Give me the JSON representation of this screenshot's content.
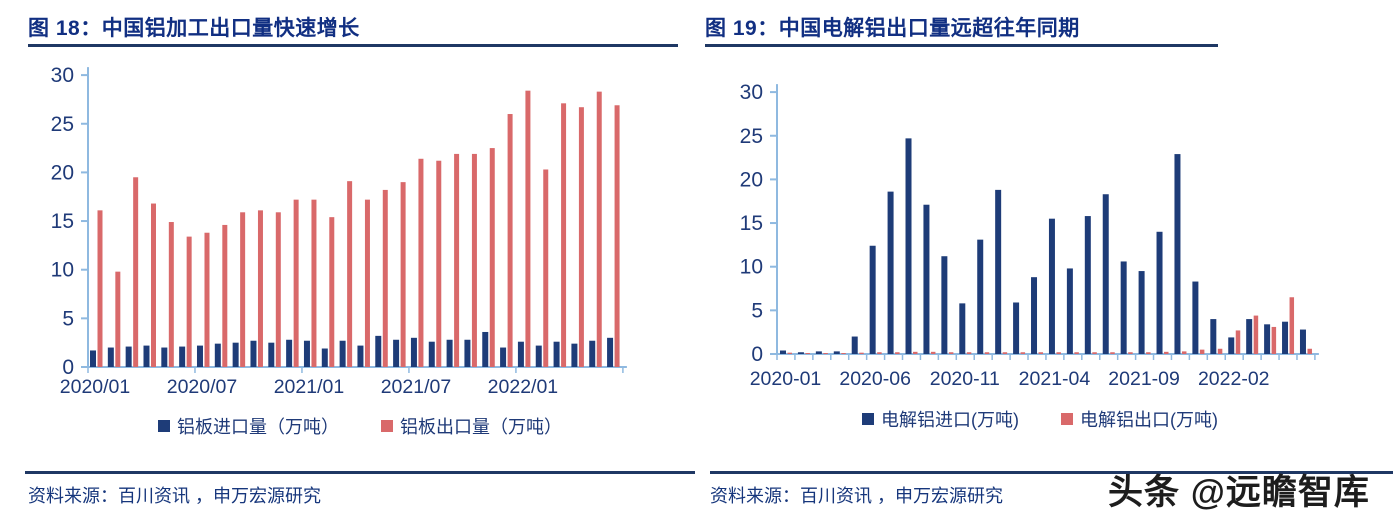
{
  "colors": {
    "title_blue": "#112f82",
    "text_navy": "#1f3a78",
    "axis_light_blue": "#8fb9e0",
    "rule_navy": "#1f3864",
    "bar_blue": "#1e3c78",
    "bar_red": "#d9696a",
    "watermark_ink": "#1d1d1d"
  },
  "panels": [
    {
      "title": "图 18：中国铝加工出口量快速增长",
      "source": "资料来源：百川资讯 ，申万宏源研究",
      "chart_data": {
        "type": "bar",
        "x": [
          "2020/01",
          "2020/02",
          "2020/03",
          "2020/04",
          "2020/05",
          "2020/06",
          "2020/07",
          "2020/08",
          "2020/09",
          "2020/10",
          "2020/11",
          "2020/12",
          "2021/01",
          "2021/02",
          "2021/03",
          "2021/04",
          "2021/05",
          "2021/06",
          "2021/07",
          "2021/08",
          "2021/09",
          "2021/10",
          "2021/11",
          "2021/12",
          "2022/01",
          "2022/02",
          "2022/03",
          "2022/04",
          "2022/05",
          "2022/06"
        ],
        "series": [
          {
            "name": "铝板进口量（万吨）",
            "color": "#1e3c78",
            "values": [
              1.7,
              2.0,
              2.1,
              2.2,
              2.0,
              2.1,
              2.2,
              2.4,
              2.5,
              2.7,
              2.5,
              2.8,
              2.7,
              1.9,
              2.7,
              2.2,
              3.2,
              2.8,
              3.0,
              2.6,
              2.8,
              2.8,
              3.6,
              2.0,
              2.6,
              2.2,
              2.6,
              2.4,
              2.7,
              3.0
            ]
          },
          {
            "name": "铝板出口量（万吨）",
            "color": "#d9696a",
            "values": [
              16.1,
              9.8,
              19.5,
              16.8,
              14.9,
              13.4,
              13.8,
              14.6,
              15.9,
              16.1,
              15.9,
              17.2,
              17.2,
              15.4,
              19.1,
              17.2,
              18.2,
              19.0,
              21.4,
              21.2,
              21.9,
              21.9,
              22.5,
              26.0,
              28.4,
              20.3,
              27.1,
              26.7,
              28.3,
              26.9
            ]
          }
        ],
        "ylim": [
          0,
          30
        ],
        "yticks": [
          0,
          5,
          10,
          15,
          20,
          25,
          30
        ],
        "xticks_shown": [
          {
            "index": 0,
            "label": "2020/01"
          },
          {
            "index": 6,
            "label": "2020/07"
          },
          {
            "index": 12,
            "label": "2021/01"
          },
          {
            "index": 18,
            "label": "2021/07"
          },
          {
            "index": 24,
            "label": "2022/01"
          }
        ],
        "grid": false,
        "legend_position": "bottom"
      }
    },
    {
      "title": "图 19：中国电解铝出口量远超往年同期",
      "source": "资料来源：百川资讯 ，申万宏源研究",
      "watermark": "头条 @远瞻智库",
      "chart_data": {
        "type": "bar",
        "x": [
          "2020-01",
          "2020-02",
          "2020-03",
          "2020-04",
          "2020-05",
          "2020-06",
          "2020-07",
          "2020-08",
          "2020-09",
          "2020-10",
          "2020-11",
          "2020-12",
          "2021-01",
          "2021-02",
          "2021-03",
          "2021-04",
          "2021-05",
          "2021-06",
          "2021-07",
          "2021-08",
          "2021-09",
          "2021-10",
          "2021-11",
          "2021-12",
          "2022-01",
          "2022-02",
          "2022-03",
          "2022-04",
          "2022-05",
          "2022-06"
        ],
        "series": [
          {
            "name": "电解铝进口(万吨)",
            "color": "#1e3c78",
            "values": [
              0.4,
              0.2,
              0.3,
              0.3,
              2.0,
              12.4,
              18.6,
              24.7,
              17.1,
              11.2,
              5.8,
              13.1,
              18.8,
              5.9,
              8.8,
              15.5,
              9.8,
              15.8,
              18.3,
              10.6,
              9.5,
              14.0,
              22.9,
              8.3,
              4.0,
              1.9,
              4.0,
              3.4,
              3.7,
              2.8
            ]
          },
          {
            "name": "电解铝出口(万吨)",
            "color": "#d9696a",
            "values": [
              0.15,
              0.1,
              0.1,
              0.1,
              0.15,
              0.2,
              0.2,
              0.25,
              0.25,
              0.2,
              0.2,
              0.2,
              0.2,
              0.2,
              0.2,
              0.2,
              0.2,
              0.2,
              0.2,
              0.2,
              0.2,
              0.25,
              0.3,
              0.5,
              0.6,
              2.7,
              4.4,
              3.1,
              6.5,
              0.6
            ]
          }
        ],
        "ylim": [
          0,
          30
        ],
        "yticks": [
          0,
          5,
          10,
          15,
          20,
          25,
          30
        ],
        "xticks_shown": [
          {
            "index": 0,
            "label": "2020-01"
          },
          {
            "index": 5,
            "label": "2020-06"
          },
          {
            "index": 10,
            "label": "2020-11"
          },
          {
            "index": 15,
            "label": "2021-04"
          },
          {
            "index": 20,
            "label": "2021-09"
          },
          {
            "index": 25,
            "label": "2022-02"
          }
        ],
        "grid": false,
        "legend_position": "bottom"
      }
    }
  ]
}
